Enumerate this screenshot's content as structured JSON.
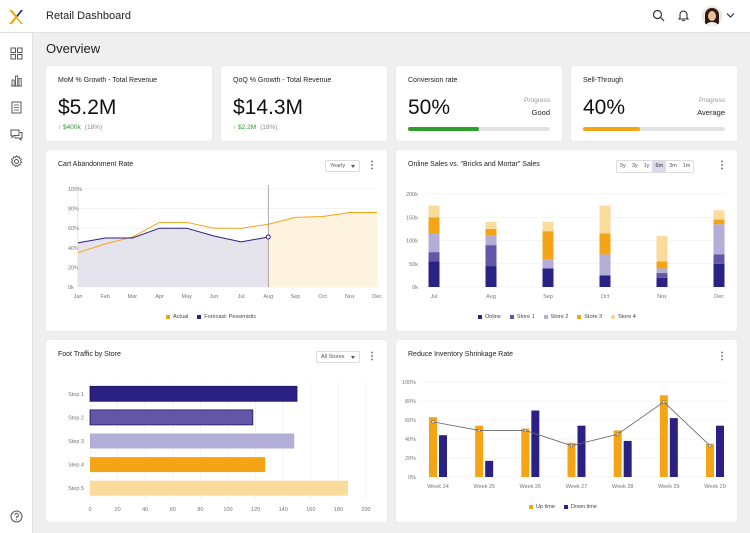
{
  "app": {
    "title": "Retail Dashboard"
  },
  "page": {
    "title": "Overview"
  },
  "colors": {
    "navy": "#2b2185",
    "purple": "#6356a8",
    "lavender": "#b3aed8",
    "orange": "#f5a416",
    "peach": "#fbdb9c",
    "green": "#2ca02c"
  },
  "kpis": [
    {
      "title": "MoM % Growth - Total Revenue",
      "value": "$5.2M",
      "delta": "↑ $400k",
      "delta_pct": "(18%)"
    },
    {
      "title": "QoQ % Growth - Total Revenue",
      "value": "$14.3M",
      "delta": "↑ $2.2M",
      "delta_pct": "(18%)"
    },
    {
      "title": "Conversion rate",
      "value": "50%",
      "progress_label": "Progress",
      "status": "Good",
      "progress": 0.5
    },
    {
      "title": "Sell-Through",
      "value": "40%",
      "progress_label": "Progress",
      "status": "Average",
      "progress": 0.4
    }
  ],
  "cart": {
    "title": "Cart Abandonment Rate",
    "select": "Yearly"
  },
  "online": {
    "title": "Online Sales vs. \"Bricks and Mortar\" Sales",
    "ranges": [
      "5y",
      "3y",
      "1y",
      "6m",
      "3m",
      "1m"
    ],
    "active": "6m"
  },
  "foot": {
    "title": "Foot Traffic by Store",
    "select": "All Stores"
  },
  "shrink": {
    "title": "Reduce Inventory Shrinkage Rate"
  },
  "chart_data": [
    {
      "type": "line",
      "title": "Cart Abandonment Rate",
      "categories": [
        "Jan",
        "Feb",
        "Mar",
        "Apr",
        "May",
        "Jun",
        "Jul",
        "Aug",
        "Sep",
        "Oct",
        "Nov",
        "Dec"
      ],
      "yticks": [
        "0k",
        "20%",
        "40%",
        "60%",
        "80%",
        "100%"
      ],
      "ylim": [
        0,
        100
      ],
      "series": [
        {
          "name": "Actual",
          "values": [
            35,
            44,
            51,
            66,
            66,
            60,
            60,
            64,
            71,
            72,
            76,
            76
          ]
        },
        {
          "name": "Forecast: Pessimistic",
          "values": [
            45,
            50,
            50,
            60,
            60,
            52,
            46,
            51,
            null,
            null,
            null,
            null
          ]
        }
      ],
      "forecast_start": "Aug"
    },
    {
      "type": "bar",
      "stacked": true,
      "title": "Online Sales vs. \"Bricks and Mortar\" Sales",
      "categories": [
        "Jul",
        "Aug",
        "Sep",
        "Oct",
        "Nov",
        "Dec"
      ],
      "yticks": [
        "0k",
        "50k",
        "100k",
        "150k",
        "200k"
      ],
      "ylim": [
        0,
        200
      ],
      "series": [
        {
          "name": "Online",
          "values": [
            55,
            45,
            40,
            25,
            20,
            50
          ]
        },
        {
          "name": "Store 1",
          "values": [
            20,
            45,
            0,
            0,
            10,
            20
          ]
        },
        {
          "name": "Store 2",
          "values": [
            40,
            20,
            20,
            45,
            10,
            65
          ]
        },
        {
          "name": "Store 3",
          "values": [
            35,
            15,
            60,
            45,
            15,
            10
          ]
        },
        {
          "name": "Store 4",
          "values": [
            25,
            15,
            20,
            60,
            55,
            20
          ]
        }
      ]
    },
    {
      "type": "bar",
      "orientation": "horizontal",
      "title": "Foot Traffic by Store",
      "categories": [
        "Step 1",
        "Step 2",
        "Step 3",
        "Step 4",
        "Step 5"
      ],
      "values": [
        150,
        118,
        148,
        127,
        187
      ],
      "xticks": [
        "0",
        "20",
        "40",
        "60",
        "80",
        "100",
        "120",
        "140",
        "160",
        "180",
        "200"
      ],
      "xlim": [
        0,
        200
      ]
    },
    {
      "type": "bar",
      "title": "Reduce Inventory Shrinkage Rate",
      "categories": [
        "Week 24",
        "Week 25",
        "Week 26",
        "Week 27",
        "Week 28",
        "Week 29",
        "Week 29"
      ],
      "yticks": [
        "0%",
        "20%",
        "40%",
        "60%",
        "80%",
        "100%"
      ],
      "ylim": [
        0,
        100
      ],
      "series": [
        {
          "name": "Up time",
          "values": [
            63,
            54,
            51,
            36,
            49,
            86,
            35
          ]
        },
        {
          "name": "Down time",
          "values": [
            44,
            17,
            70,
            54,
            38,
            62,
            54
          ]
        }
      ],
      "line": [
        58,
        49,
        49,
        33,
        45,
        79,
        33
      ]
    }
  ]
}
